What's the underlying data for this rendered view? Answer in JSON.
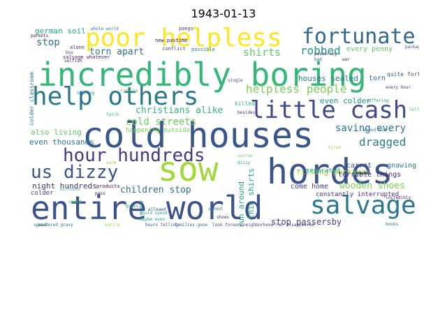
{
  "title": "1943-01-13",
  "words": [
    {
      "text": "entire world",
      "color": "#3b528b"
    },
    {
      "text": "cold houses",
      "color": "#39568c"
    },
    {
      "text": "incredibly boring",
      "color": "#35b779"
    },
    {
      "text": "hordes",
      "color": "#3b528b"
    },
    {
      "text": "sow",
      "color": "#a0da39"
    },
    {
      "text": "salvage",
      "color": "#2a788e"
    },
    {
      "text": "poor helpless",
      "color": "#fde725"
    },
    {
      "text": "help others",
      "color": "#2a788e"
    },
    {
      "text": "fortunate",
      "color": "#31688e"
    },
    {
      "text": "little cash",
      "color": "#3e4a89"
    },
    {
      "text": "hour hundreds",
      "color": "#443983"
    },
    {
      "text": "us dizzy",
      "color": "#3b528b"
    },
    {
      "text": "helpless people",
      "color": "#7ad151"
    },
    {
      "text": "robbed",
      "color": "#21918c"
    },
    {
      "text": "dragged",
      "color": "#2a788e"
    },
    {
      "text": "torn apart",
      "color": "#2c728e"
    },
    {
      "text": "shirts",
      "color": "#5ec962"
    },
    {
      "text": "stop",
      "color": "#2c728e"
    },
    {
      "text": "cold streets",
      "color": "#6ece58"
    },
    {
      "text": "saving every",
      "color": "#2a788e"
    },
    {
      "text": "christians alike",
      "color": "#35b779"
    },
    {
      "text": "children stop",
      "color": "#2c728e"
    },
    {
      "text": "wooden shoes",
      "color": "#7ad151"
    },
    {
      "text": "stop passersby",
      "color": "#414487"
    },
    {
      "text": "houses sealed",
      "color": "#2a788e"
    },
    {
      "text": "even colder",
      "color": "#21918c"
    },
    {
      "text": "every penny",
      "color": "#5ec962"
    },
    {
      "text": "german soil",
      "color": "#22a884"
    },
    {
      "text": "filling packages",
      "color": "#8fd744"
    },
    {
      "text": "terrible things",
      "color": "#482878"
    },
    {
      "text": "even thousands",
      "color": "#2c728e"
    },
    {
      "text": "also living",
      "color": "#5ec962"
    },
    {
      "text": "night hundreds",
      "color": "#46327e"
    },
    {
      "text": "come home",
      "color": "#433e85"
    },
    {
      "text": "run around",
      "color": "#1f9e89"
    },
    {
      "text": "thin shirts",
      "color": "#22a884"
    },
    {
      "text": "gnawing",
      "color": "#2a788e"
    },
    {
      "text": "carrot",
      "color": "#3b528b"
    },
    {
      "text": "torn",
      "color": "#31688e"
    },
    {
      "text": "colder",
      "color": "#414487"
    },
    {
      "text": "constantly interrupted",
      "color": "#46327e"
    },
    {
      "text": "separated",
      "color": "#22a884"
    },
    {
      "text": "colder classroom",
      "color": "#2c728e"
    },
    {
      "text": "happening outside",
      "color": "#7ad151"
    },
    {
      "text": "killed",
      "color": "#35b779"
    },
    {
      "text": "alone",
      "color": "#482878"
    },
    {
      "text": "russia",
      "color": "#5ec962"
    },
    {
      "text": "salvage whatever",
      "color": "#481f70"
    },
    {
      "text": "new pastime",
      "color": "#440154"
    },
    {
      "text": "conflict",
      "color": "#3e4a89"
    },
    {
      "text": "possible",
      "color": "#2c728e"
    },
    {
      "text": "pangs",
      "color": "#443983"
    },
    {
      "text": "quite fortunate",
      "color": "#3b528b"
    },
    {
      "text": "every hour",
      "color": "#472d7b"
    },
    {
      "text": "products",
      "color": "#440154"
    },
    {
      "text": "powdered gravy",
      "color": "#2c728e"
    },
    {
      "text": "hours telling",
      "color": "#3b528b"
    },
    {
      "text": "families gone",
      "color": "#31688e"
    },
    {
      "text": "look forward",
      "color": "#3e4a89"
    },
    {
      "text": "neighborhood run",
      "color": "#414487"
    },
    {
      "text": "disappeared",
      "color": "#433e85"
    },
    {
      "text": "speed hours",
      "color": "#2a788e"
    },
    {
      "text": "maybe even",
      "color": "#1f9e89"
    },
    {
      "text": "could spend",
      "color": "#22a884"
    },
    {
      "text": "millions",
      "color": "#35b779"
    },
    {
      "text": "whole world",
      "color": "#2c728e"
    },
    {
      "text": "pass",
      "color": "#440154"
    },
    {
      "text": "passersby",
      "color": "#46327e"
    },
    {
      "text": "single",
      "color": "#3b528b"
    },
    {
      "text": "numbly",
      "color": "#2a788e"
    },
    {
      "text": "incredibly",
      "color": "#481f70"
    },
    {
      "text": "books",
      "color": "#31688e"
    },
    {
      "text": "entire",
      "color": "#8fd744"
    },
    {
      "text": "spend",
      "color": "#5ec962"
    },
    {
      "text": "speed",
      "color": "#2c728e"
    },
    {
      "text": "guess",
      "color": "#21918c"
    },
    {
      "text": "shoes",
      "color": "#482878"
    },
    {
      "text": "tired",
      "color": "#a0da39"
    },
    {
      "text": "fetch",
      "color": "#35b779"
    },
    {
      "text": "allowed",
      "color": "#414487"
    },
    {
      "text": "besides",
      "color": "#472d7b"
    },
    {
      "text": "packages",
      "color": "#3e4a89"
    },
    {
      "text": "parents",
      "color": "#440154"
    },
    {
      "text": "selfish",
      "color": "#481f70"
    },
    {
      "text": "nothing",
      "color": "#2a788e"
    },
    {
      "text": "telling",
      "color": "#5ec962"
    },
    {
      "text": "suffering",
      "color": "#1f9e89"
    },
    {
      "text": "sorrow",
      "color": "#6ece58"
    },
    {
      "text": "warm",
      "color": "#8fd744"
    },
    {
      "text": "dizzy",
      "color": "#22a884"
    },
    {
      "text": "school",
      "color": "#2c728e"
    },
    {
      "text": "boy",
      "color": "#433e85"
    },
    {
      "text": "bad",
      "color": "#3b528b"
    },
    {
      "text": "war",
      "color": "#482878"
    }
  ]
}
